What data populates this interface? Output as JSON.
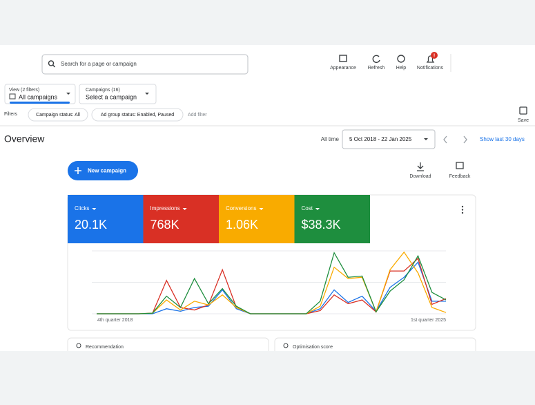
{
  "header": {
    "search_placeholder": "Search for a page or campaign",
    "toolbar": [
      "Appearance",
      "Refresh",
      "Help",
      "Notifications"
    ],
    "notification_badge": "!"
  },
  "selectors": {
    "view_label": "View (2 filters)",
    "view_value": "All campaigns",
    "campaigns_label": "Campaigns (16)",
    "campaigns_value": "Select a campaign"
  },
  "filters": {
    "label": "Filters",
    "chips": [
      "Campaign status: All",
      "Ad group status: Enabled, Paused"
    ],
    "add": "Add filter",
    "save": "Save"
  },
  "overview": {
    "title": "Overview",
    "range_label": "All time",
    "date_range": "5 Oct 2018 - 22 Jan 2025",
    "show_last": "Show last 30 days",
    "new_campaign": "New campaign",
    "download": "Download",
    "feedback": "Feedback"
  },
  "metrics": [
    {
      "name": "Clicks",
      "value": "20.1K",
      "color": "#1a73e8"
    },
    {
      "name": "Impressions",
      "value": "768K",
      "color": "#d93025"
    },
    {
      "name": "Conversions",
      "value": "1.06K",
      "color": "#f9ab00"
    },
    {
      "name": "Cost",
      "value": "$38.3K",
      "color": "#1e8e3e"
    }
  ],
  "chart": {
    "type": "line",
    "x_start": "4th quarter 2018",
    "x_end": "1st quarter 2025",
    "ylim": [
      0,
      100
    ],
    "series": [
      {
        "name": "Clicks",
        "color": "#1a73e8",
        "values": [
          0,
          0,
          0,
          0,
          0,
          8,
          4,
          10,
          12,
          38,
          8,
          0,
          0,
          0,
          0,
          0,
          8,
          38,
          18,
          28,
          4,
          42,
          58,
          82,
          20,
          20
        ]
      },
      {
        "name": "Impressions",
        "color": "#d93025",
        "values": [
          0,
          0,
          0,
          0,
          1,
          53,
          10,
          6,
          14,
          70,
          10,
          0,
          0,
          0,
          0,
          0,
          5,
          30,
          16,
          22,
          3,
          68,
          68,
          88,
          15,
          24
        ]
      },
      {
        "name": "Conversions",
        "color": "#f9ab00",
        "values": [
          0,
          0,
          0,
          0,
          1,
          22,
          6,
          20,
          14,
          30,
          10,
          0,
          0,
          0,
          0,
          0,
          12,
          74,
          56,
          58,
          3,
          70,
          98,
          65,
          10,
          2
        ]
      },
      {
        "name": "Cost",
        "color": "#1e8e3e",
        "values": [
          0,
          0,
          0,
          0,
          1,
          28,
          10,
          56,
          16,
          40,
          12,
          0,
          0,
          0,
          0,
          0,
          20,
          97,
          58,
          60,
          3,
          36,
          54,
          92,
          34,
          22
        ]
      }
    ]
  },
  "cards": [
    "Recommendation",
    "Optimisation score"
  ]
}
